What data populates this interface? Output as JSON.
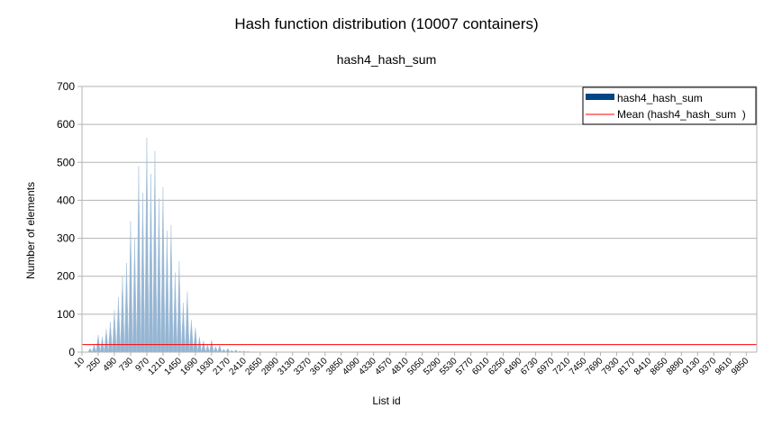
{
  "chart_data": {
    "type": "area",
    "title": "Hash function distribution (10007 containers)",
    "subtitle": "hash4_hash_sum",
    "xlabel": "List id",
    "ylabel": "Number of elements",
    "ylim": [
      0,
      700
    ],
    "xlim": [
      10,
      10006
    ],
    "y_ticks": [
      "0",
      "100",
      "200",
      "300",
      "400",
      "500",
      "600",
      "700"
    ],
    "x_ticks": [
      "10",
      "250",
      "490",
      "730",
      "970",
      "1210",
      "1450",
      "1690",
      "1930",
      "2170",
      "2410",
      "2650",
      "2890",
      "3130",
      "3370",
      "3610",
      "3850",
      "4090",
      "4330",
      "4570",
      "4810",
      "5050",
      "5290",
      "5530",
      "5770",
      "6010",
      "6250",
      "6490",
      "6730",
      "6970",
      "7210",
      "7450",
      "7690",
      "7930",
      "8170",
      "8410",
      "8650",
      "8890",
      "9130",
      "9370",
      "9610",
      "9850"
    ],
    "grid": true,
    "legend_position": "top-right",
    "series": [
      {
        "name": "hash4_hash_sum",
        "color": "#004586",
        "fill_color": "#8fb1d0",
        "peaks": [
          {
            "x": 130,
            "y": 10
          },
          {
            "x": 190,
            "y": 20
          },
          {
            "x": 250,
            "y": 45
          },
          {
            "x": 310,
            "y": 40
          },
          {
            "x": 370,
            "y": 60
          },
          {
            "x": 430,
            "y": 80
          },
          {
            "x": 490,
            "y": 110
          },
          {
            "x": 550,
            "y": 145
          },
          {
            "x": 610,
            "y": 200
          },
          {
            "x": 670,
            "y": 235
          },
          {
            "x": 730,
            "y": 345
          },
          {
            "x": 790,
            "y": 300
          },
          {
            "x": 850,
            "y": 490
          },
          {
            "x": 910,
            "y": 420
          },
          {
            "x": 970,
            "y": 565
          },
          {
            "x": 1030,
            "y": 470
          },
          {
            "x": 1090,
            "y": 530
          },
          {
            "x": 1150,
            "y": 405
          },
          {
            "x": 1210,
            "y": 435
          },
          {
            "x": 1270,
            "y": 320
          },
          {
            "x": 1330,
            "y": 335
          },
          {
            "x": 1390,
            "y": 210
          },
          {
            "x": 1450,
            "y": 240
          },
          {
            "x": 1510,
            "y": 130
          },
          {
            "x": 1570,
            "y": 160
          },
          {
            "x": 1630,
            "y": 85
          },
          {
            "x": 1690,
            "y": 65
          },
          {
            "x": 1750,
            "y": 40
          },
          {
            "x": 1810,
            "y": 30
          },
          {
            "x": 1870,
            "y": 20
          },
          {
            "x": 1930,
            "y": 32
          },
          {
            "x": 1990,
            "y": 15
          },
          {
            "x": 2050,
            "y": 18
          },
          {
            "x": 2110,
            "y": 8
          },
          {
            "x": 2170,
            "y": 10
          },
          {
            "x": 2230,
            "y": 5
          },
          {
            "x": 2290,
            "y": 6
          },
          {
            "x": 2350,
            "y": 3
          },
          {
            "x": 2410,
            "y": 3
          },
          {
            "x": 2470,
            "y": 2
          },
          {
            "x": 2530,
            "y": 1
          }
        ]
      },
      {
        "name": "Mean (hash4_hash_sum  )",
        "color": "#ff0000",
        "value": 20
      }
    ]
  }
}
